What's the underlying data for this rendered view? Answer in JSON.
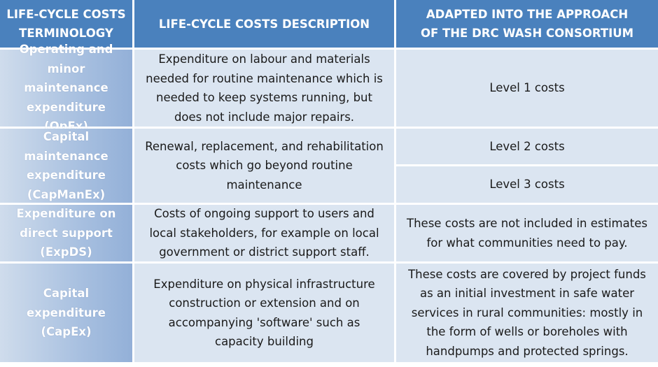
{
  "header": {
    "col1": "LIFE-CYCLE COSTS TERMINOLOGY",
    "col2": "LIFE-CYCLE COSTS DESCRIPTION",
    "col3": "ADAPTED INTO THE APPROACH OF THE DRC WASH CONSORTIUM"
  },
  "rows": [
    {
      "term": "Operating and minor maintenance expenditure (OpEx)",
      "description": "Expenditure on labour and materials needed for routine maintenance which is needed to keep systems running, but does not include major repairs.",
      "approach": [
        "Level 1 costs"
      ]
    },
    {
      "term": "Capital maintenance expenditure (CapManEx)",
      "description": "Renewal, replacement, and rehabilitation costs which go beyond routine maintenance",
      "approach": [
        "Level 2 costs",
        "Level 3 costs"
      ]
    },
    {
      "term": "Expenditure on direct support (ExpDS)",
      "description": "Costs of ongoing support to users and local stakeholders, for example on local government or district support staff.",
      "approach": [
        "These costs are not included in estimates for what communities need to pay."
      ]
    },
    {
      "term": "Capital expenditure (CapEx)",
      "description": "Expenditure on physical infrastructure construction or extension and on accompanying 'software' such as capacity building",
      "approach": [
        "These costs are covered by project funds as an initial investment in safe water services in rural communities: mostly in the form of wells or boreholes with handpumps and protected springs."
      ]
    }
  ],
  "colors": {
    "header_bg": "#4a81bd",
    "cell_bg": "#dbe5f1",
    "term_bg": "#a8c0e0"
  }
}
